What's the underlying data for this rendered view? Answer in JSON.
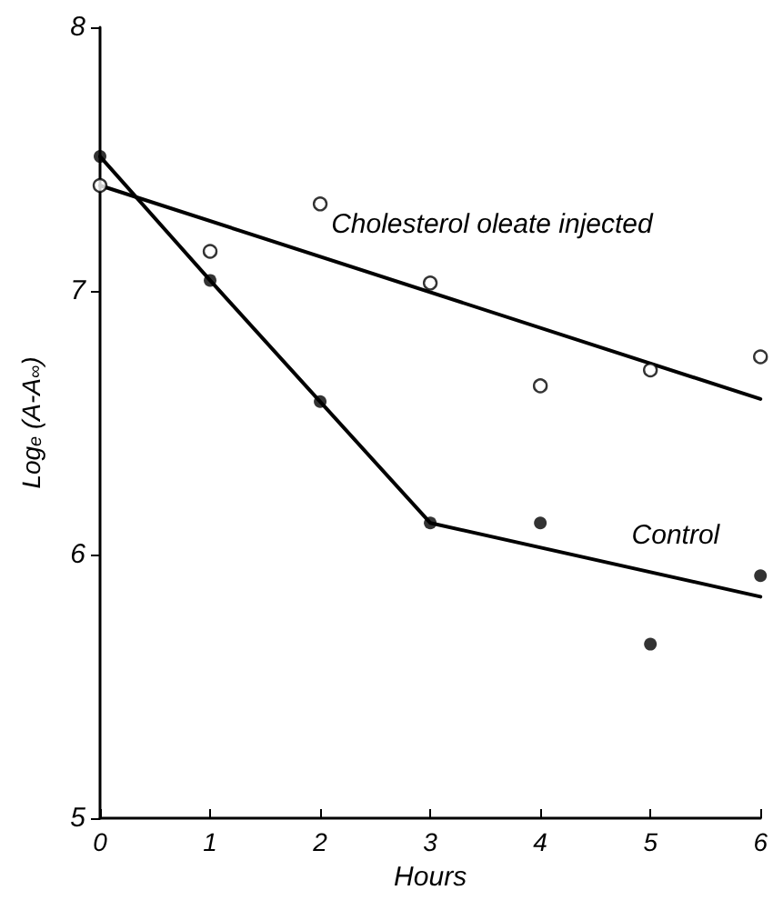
{
  "chart_data": {
    "type": "scatter",
    "xlabel": "Hours",
    "ylabel": "Log$_{e}$ (A-A$_{∞}$)",
    "xlim": [
      0,
      6
    ],
    "xticks": [
      0,
      1,
      2,
      3,
      4,
      5,
      6
    ],
    "ylim": [
      5,
      8
    ],
    "yticks": [
      5,
      6,
      7,
      8
    ],
    "grid": false,
    "legend": false,
    "marker": "circle",
    "series": [
      {
        "type": "scatter",
        "color": "#000000",
        "x": [
          0,
          1,
          2,
          3,
          4,
          5,
          6
        ],
        "values": [
          7.4,
          7.15,
          7.33,
          7.03,
          6.64,
          6.7,
          6.75
        ]
      },
      {
        "type": "scatter",
        "color": "#000000",
        "x": [
          0,
          1,
          2,
          3,
          4,
          5,
          6
        ],
        "values": [
          7.51,
          7.04,
          6.58,
          6.12,
          6.12,
          5.66,
          5.92
        ]
      },
      {
        "type": "line",
        "name": "Cholesterol oleate injected",
        "color": "#000000",
        "marker": "none",
        "line_style": "solid",
        "x": [
          0,
          6
        ],
        "values": [
          7.4,
          6.59
        ]
      },
      {
        "type": "line",
        "name": "Control",
        "color": "#000000",
        "marker": "none",
        "line_style": "solid",
        "x": [
          0,
          1,
          2,
          3,
          6
        ],
        "values": [
          7.51,
          7.04,
          6.58,
          6.12,
          5.84
        ]
      }
    ]
  }
}
